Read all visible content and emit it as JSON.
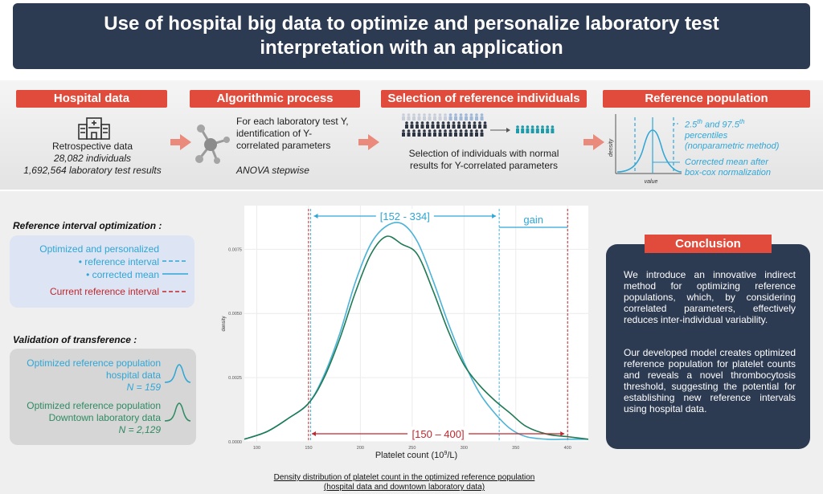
{
  "title": "Use of hospital big data to optimize and personalize laboratory test interpretation with an application",
  "steps": {
    "hospital": {
      "heading": "Hospital data",
      "icon": "hospital-icon",
      "line1": "Retrospective data",
      "line2": "28,082 individuals",
      "line3": "1,692,564 laboratory test results"
    },
    "algorithm": {
      "heading": "Algorithmic process",
      "icon": "molecule-icon",
      "line1": "For each laboratory test Y,",
      "line2": "identification of Y-",
      "line3": "correlated parameters",
      "line4": "ANOVA stepwise"
    },
    "selection": {
      "heading": "Selection of reference individuals",
      "icon": "people-selection-icon",
      "line1": "Selection of individuals with normal",
      "line2": "results for Y-correlated parameters"
    },
    "reference": {
      "heading": "Reference population",
      "icon": "density-curve-icon",
      "ylabel": "density",
      "xlabel": "value",
      "note1_base1": "2.5",
      "note1_sup1": "th",
      "note1_mid": " and 97.5",
      "note1_sup2": "th",
      "note1_line2": "percentiles",
      "note1_line3": "(nonparametric method)",
      "note2_line1": "Corrected mean after",
      "note2_line2": "box-cox normalization"
    }
  },
  "optimization": {
    "title": "Reference interval optimization :",
    "line1": "Optimized and personalized",
    "bullet1": "reference interval",
    "bullet2": "corrected mean",
    "line_current": "Current reference interval"
  },
  "validation": {
    "title": "Validation of transference :",
    "hospital_line1": "Optimized reference population",
    "hospital_line2": "hospital data",
    "hospital_n": "N = 159",
    "downtown_line1": "Optimized reference population",
    "downtown_line2": "Downtown laboratory data",
    "downtown_n": "N = 2,129"
  },
  "chart_data": {
    "type": "line",
    "xlabel_base": "Platelet count (10",
    "xlabel_sup": "9",
    "xlabel_end": "/L)",
    "ylabel": "density",
    "xlim": [
      88,
      420
    ],
    "ylim": [
      0,
      0.0092
    ],
    "x_ticks": [
      100,
      150,
      200,
      250,
      300,
      350,
      400
    ],
    "y_ticks": [
      0.0,
      0.0025,
      0.005,
      0.0075
    ],
    "y_tick_labels": [
      "0.0000",
      "0.0025",
      "0.0050",
      "0.0075"
    ],
    "optimized_interval_label": "[152 - 334]",
    "optimized_interval": [
      152,
      334
    ],
    "current_interval_label": "[150 – 400]",
    "current_interval": [
      150,
      400
    ],
    "gain_label": "gain",
    "series": [
      {
        "color": "#4bb3d8",
        "x": [
          88,
          110,
          130,
          150,
          165,
          180,
          195,
          210,
          225,
          240,
          255,
          270,
          285,
          300,
          315,
          330,
          345,
          360,
          380,
          400,
          420
        ],
        "y": [
          0.0001,
          0.0004,
          0.0009,
          0.0015,
          0.0026,
          0.0042,
          0.0062,
          0.0077,
          0.0084,
          0.0085,
          0.0078,
          0.0063,
          0.0046,
          0.0031,
          0.0019,
          0.0011,
          0.0005,
          0.0002,
          0.0001,
          0.0001,
          0.0001
        ]
      },
      {
        "color": "#1f7a55",
        "x": [
          88,
          110,
          130,
          150,
          165,
          180,
          195,
          210,
          225,
          240,
          255,
          270,
          285,
          300,
          315,
          330,
          345,
          360,
          380,
          400,
          420
        ],
        "y": [
          0.0001,
          0.0004,
          0.0009,
          0.0015,
          0.0025,
          0.004,
          0.0058,
          0.0073,
          0.008,
          0.0077,
          0.0073,
          0.0059,
          0.0043,
          0.003,
          0.0022,
          0.0016,
          0.0011,
          0.0006,
          0.0003,
          0.0002,
          0.0001
        ]
      }
    ]
  },
  "chart_caption_line1": "Density distribution of platelet count in the optimized reference population",
  "chart_caption_line2": "(hospital data and downtown laboratory data)",
  "conclusion": {
    "heading": "Conclusion",
    "para1": "We introduce an innovative indirect method for optimizing reference populations, which, by considering correlated parameters, effectively reduces inter-individual variability.",
    "para2": "Our developed model creates optimized reference population for platelet counts and reveals a novel thrombocytosis threshold, suggesting the potential for establishing new reference intervals using hospital data."
  },
  "colors": {
    "header_bg": "#2c3a52",
    "accent_red": "#e04b3b",
    "optimized_blue": "#2fa6d6",
    "current_red": "#c0272d",
    "downtown_green": "#2e8b62"
  }
}
